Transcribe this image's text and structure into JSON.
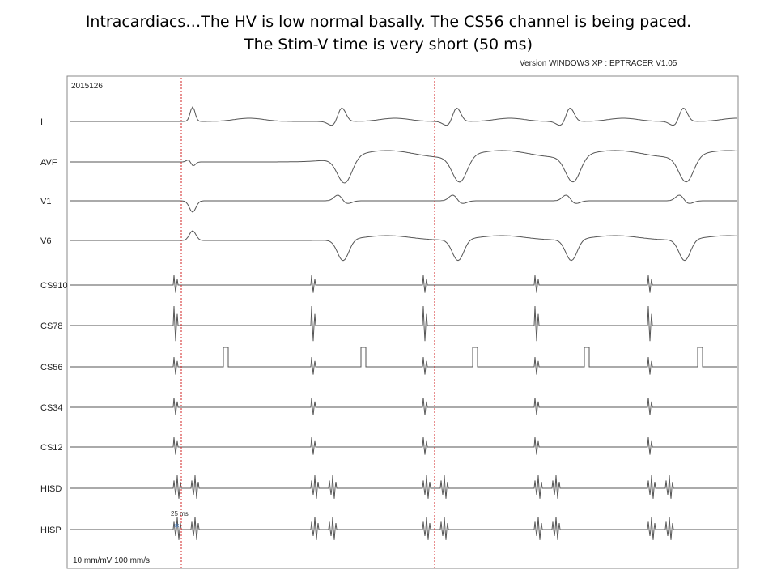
{
  "title_line1": "Intracardiacs…The HV is low normal basally. The CS56 channel is being paced.",
  "title_line2": "The Stim-V time is very short (50 ms)",
  "version": "Version WINDOWS XP : EPTRACER V1.05",
  "case_id": "2015126",
  "channels": [
    {
      "label": "I",
      "kind": "surface"
    },
    {
      "label": "AVF",
      "kind": "surface"
    },
    {
      "label": "V1",
      "kind": "surface"
    },
    {
      "label": "V6",
      "kind": "surface"
    },
    {
      "label": "CS910",
      "kind": "cs"
    },
    {
      "label": "CS78",
      "kind": "cs"
    },
    {
      "label": "CS56",
      "kind": "cs"
    },
    {
      "label": "CS34",
      "kind": "cs"
    },
    {
      "label": "CS12",
      "kind": "cs"
    },
    {
      "label": "HISD",
      "kind": "his"
    },
    {
      "label": "HISP",
      "kind": "his"
    }
  ],
  "scale": "10 mm/mV   100 mm/s",
  "interval_label": "25 ms",
  "colors": {
    "trace": "#555555",
    "marker": "#d02020",
    "asterisk": "#3a6fb0",
    "frame": "#888888"
  }
}
